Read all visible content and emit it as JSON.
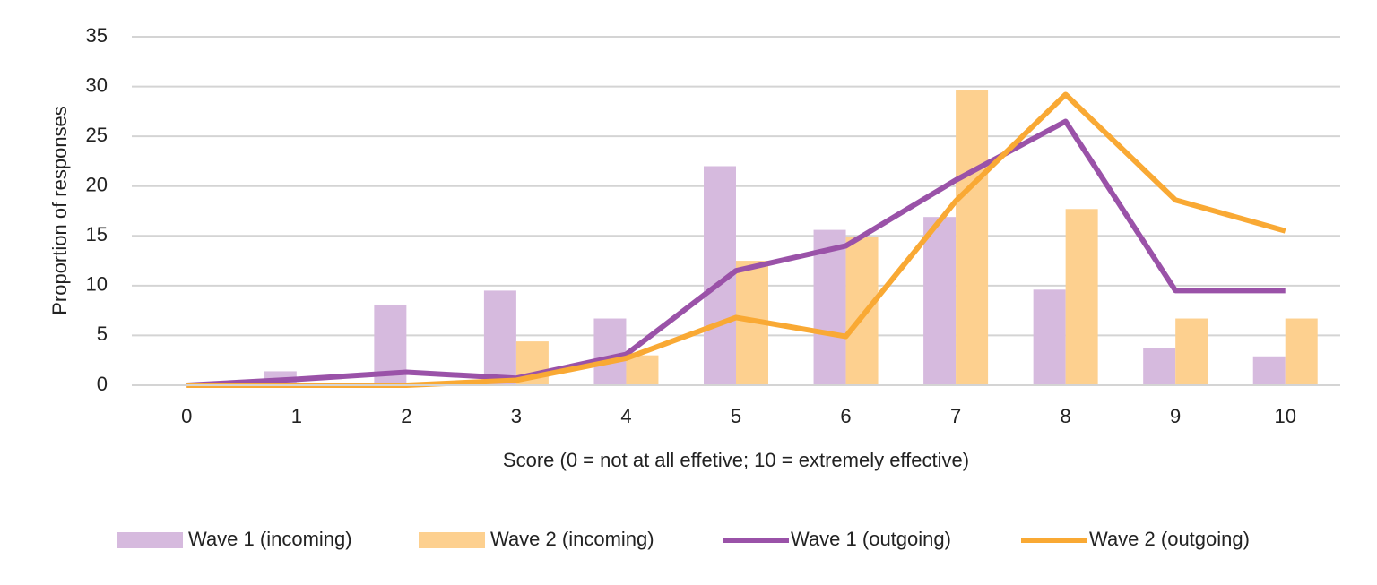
{
  "chart_data": {
    "type": "bar",
    "y_label": "Proportion of responses",
    "x_label": "Score (0 = not at all effetive; 10 = extremely effective)",
    "categories": [
      "0",
      "1",
      "2",
      "3",
      "4",
      "5",
      "6",
      "7",
      "8",
      "9",
      "10"
    ],
    "series": [
      {
        "name": "Wave 1 (incoming)",
        "type": "bar",
        "color": "#d6bade",
        "values": [
          0,
          1.4,
          8.1,
          9.5,
          6.7,
          22.0,
          15.6,
          16.9,
          9.6,
          3.7,
          2.9
        ]
      },
      {
        "name": "Wave 2 (incoming)",
        "type": "bar",
        "color": "#fdd08f",
        "values": [
          0,
          0,
          0,
          4.4,
          3.0,
          12.5,
          14.9,
          29.6,
          17.7,
          6.7,
          6.7
        ]
      },
      {
        "name": "Wave 1 (outgoing)",
        "type": "line",
        "color": "#9a52a8",
        "values": [
          0,
          0.6,
          1.3,
          0.7,
          3.1,
          11.5,
          14.0,
          20.6,
          26.5,
          9.5,
          9.5
        ]
      },
      {
        "name": "Wave 2 (outgoing)",
        "type": "line",
        "color": "#f9a934",
        "values": [
          0,
          0,
          0,
          0.5,
          2.7,
          6.8,
          4.9,
          18.5,
          29.2,
          18.6,
          15.5
        ]
      }
    ],
    "ylim": [
      0,
      35
    ],
    "yticks": [
      0,
      5,
      10,
      15,
      20,
      25,
      30,
      35
    ],
    "grid": true,
    "legend": "bottom"
  }
}
